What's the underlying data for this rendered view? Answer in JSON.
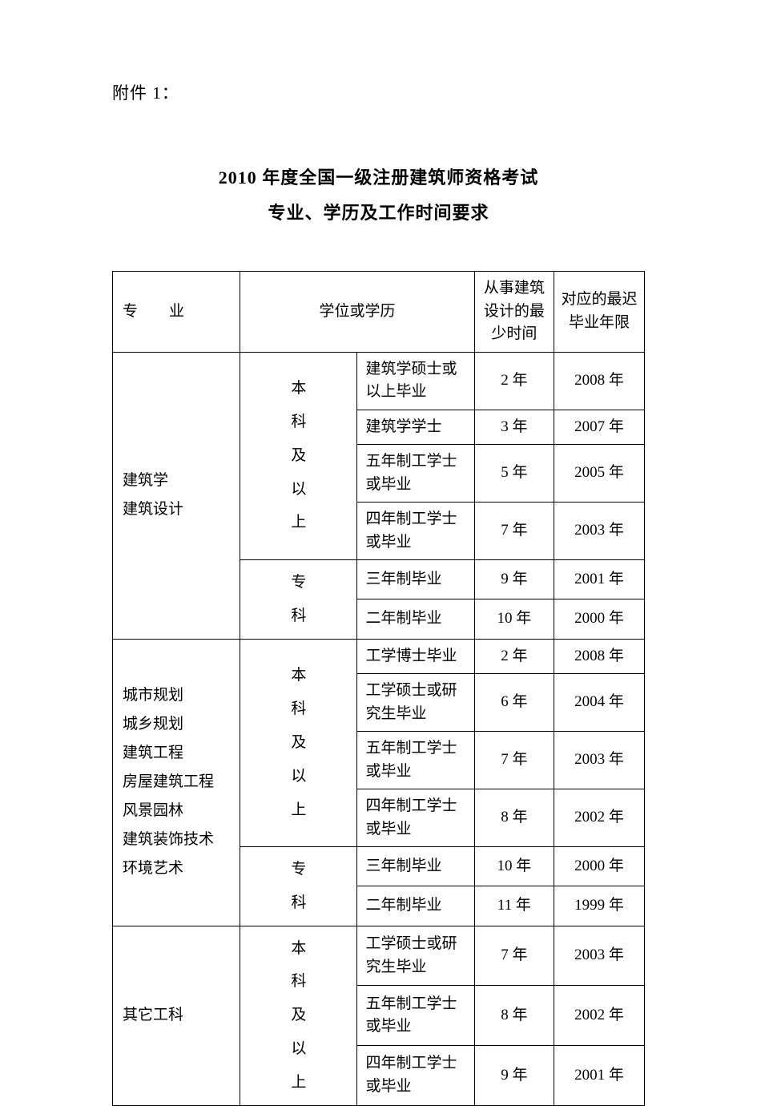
{
  "header": {
    "attachment_label": "附件 1："
  },
  "title": {
    "line1": "2010 年度全国一级注册建筑师资格考试",
    "line2": "专业、学历及工作时间要求"
  },
  "table": {
    "type": "table",
    "border_color": "#000000",
    "background_color": "#ffffff",
    "text_color": "#000000",
    "font_size_pt": 14,
    "columns": [
      {
        "key": "major",
        "label": "专　业",
        "width_pct": 24,
        "align": "left"
      },
      {
        "key": "degree",
        "label": "学位或学历",
        "width_pct": 44,
        "align": "left",
        "colspan": 2
      },
      {
        "key": "min_time",
        "label": "从事建筑设计的最少时间",
        "width_pct": 15,
        "align": "center"
      },
      {
        "key": "grad_year",
        "label": "对应的最迟毕业年限",
        "width_pct": 17,
        "align": "center"
      }
    ],
    "groups": [
      {
        "major": "建筑学\n建筑设计",
        "levels": [
          {
            "level": "本科及以上",
            "rows": [
              {
                "degree": "建筑学硕士或以上毕业",
                "min_time": "2 年",
                "grad_year": "2008 年"
              },
              {
                "degree": "建筑学学士",
                "min_time": "3 年",
                "grad_year": "2007 年"
              },
              {
                "degree": "五年制工学士或毕业",
                "min_time": "5 年",
                "grad_year": "2005 年"
              },
              {
                "degree": "四年制工学士或毕业",
                "min_time": "7 年",
                "grad_year": "2003 年"
              }
            ]
          },
          {
            "level": "专科",
            "rows": [
              {
                "degree": "三年制毕业",
                "min_time": "9 年",
                "grad_year": "2001 年"
              },
              {
                "degree": "二年制毕业",
                "min_time": "10 年",
                "grad_year": "2000 年"
              }
            ]
          }
        ]
      },
      {
        "major": "城市规划\n城乡规划\n建筑工程\n房屋建筑工程\n风景园林\n建筑装饰技术\n环境艺术",
        "levels": [
          {
            "level": "本科及以上",
            "rows": [
              {
                "degree": "工学博士毕业",
                "min_time": "2 年",
                "grad_year": "2008 年"
              },
              {
                "degree": "工学硕士或研究生毕业",
                "min_time": "6 年",
                "grad_year": "2004 年"
              },
              {
                "degree": "五年制工学士或毕业",
                "min_time": "7 年",
                "grad_year": "2003 年"
              },
              {
                "degree": "四年制工学士或毕业",
                "min_time": "8 年",
                "grad_year": "2002 年"
              }
            ]
          },
          {
            "level": "专科",
            "rows": [
              {
                "degree": "三年制毕业",
                "min_time": "10 年",
                "grad_year": "2000 年"
              },
              {
                "degree": "二年制毕业",
                "min_time": "11 年",
                "grad_year": "1999 年"
              }
            ]
          }
        ]
      },
      {
        "major": "其它工科",
        "levels": [
          {
            "level": "本科及以上",
            "rows": [
              {
                "degree": "工学硕士或研究生毕业",
                "min_time": "7 年",
                "grad_year": "2003 年"
              },
              {
                "degree": "五年制工学士或毕业",
                "min_time": "8 年",
                "grad_year": "2002 年"
              },
              {
                "degree": "四年制工学士或毕业",
                "min_time": "9 年",
                "grad_year": "2001 年"
              }
            ]
          }
        ]
      }
    ]
  }
}
